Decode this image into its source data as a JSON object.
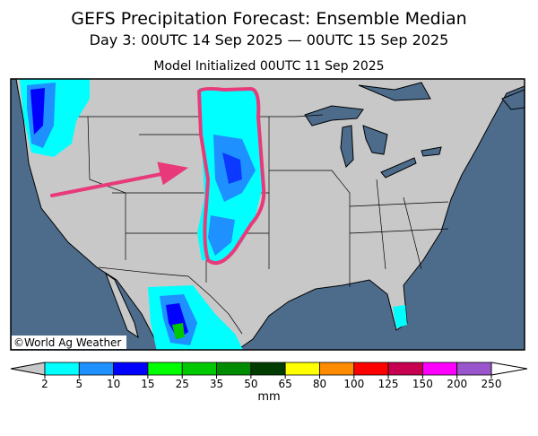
{
  "header": {
    "title": "GEFS Precipitation Forecast: Ensemble Median",
    "subtitle": "Day 3: 00UTC 14 Sep 2025 — 00UTC 15 Sep 2025",
    "initialized": "Model Initialized 00UTC 11 Sep 2025"
  },
  "credit": "©World Ag Weather",
  "colorbar": {
    "ticks": [
      2,
      5,
      10,
      15,
      25,
      35,
      50,
      65,
      80,
      100,
      125,
      150,
      200,
      250
    ],
    "colors": [
      "#00ffff",
      "#1e90ff",
      "#0000ff",
      "#00ff00",
      "#00c800",
      "#008c00",
      "#003c00",
      "#ffff00",
      "#ff8c00",
      "#ff0000",
      "#c80050",
      "#ff00ff",
      "#9955cc"
    ],
    "under_color": "#c8c8c8",
    "over_color": "#ffffff",
    "unit": "mm"
  }
}
